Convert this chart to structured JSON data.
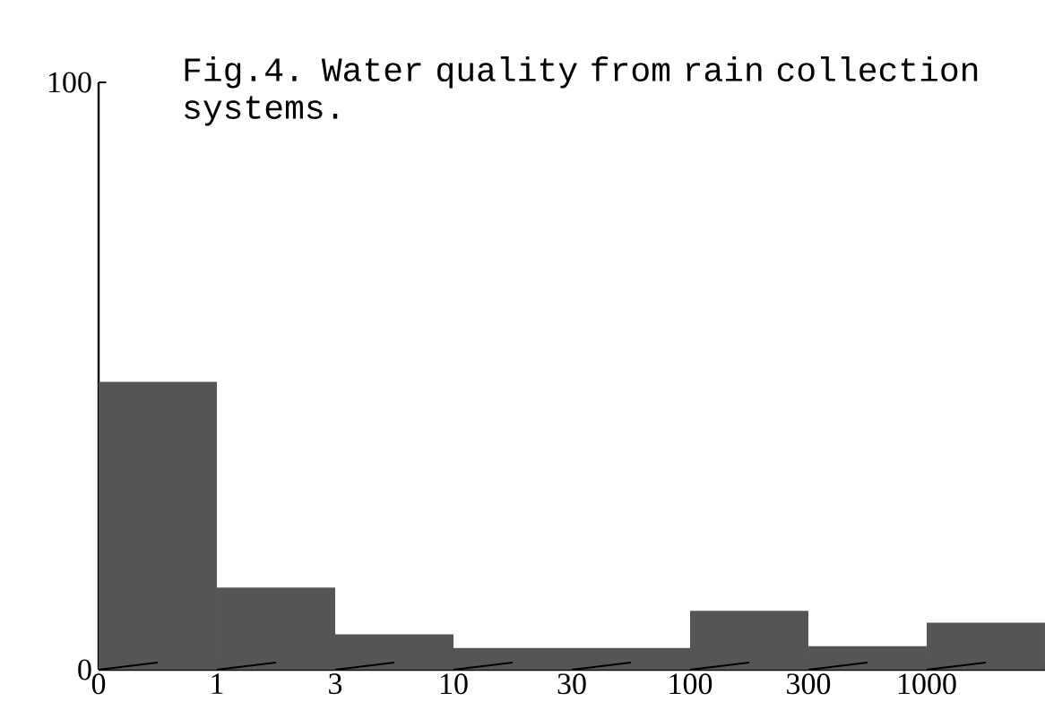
{
  "chart_data": {
    "type": "bar",
    "title": "Fig.4.  Water quality from rain collection systems.",
    "categories": [
      null,
      null,
      null,
      null,
      null,
      null,
      null,
      null
    ],
    "values": [
      49,
      14,
      6,
      3.7,
      3.7,
      10,
      4,
      8
    ],
    "color": "#555555",
    "ylim": [
      0,
      100
    ],
    "yticks": [
      0,
      100
    ],
    "annotations": [
      "0",
      "1",
      "3",
      "10",
      "30",
      "100",
      "300",
      "1000"
    ],
    "grid": false
  }
}
